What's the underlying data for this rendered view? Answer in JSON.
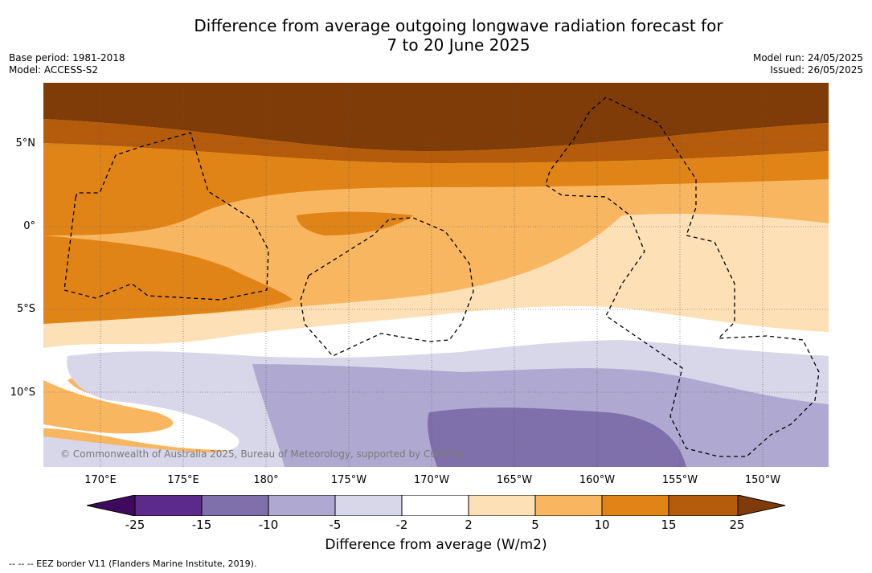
{
  "title": {
    "line1": "Difference from average outgoing longwave radiation forecast for",
    "line2": "7 to 20 June 2025"
  },
  "meta": {
    "base_period": "Base period: 1981-2018",
    "model": "Model: ACCESS-S2",
    "model_run": "Model run: 24/05/2025",
    "issued": "Issued: 26/05/2025"
  },
  "map": {
    "lat_labels": [
      "5°N",
      "0°",
      "5°S",
      "10°S"
    ],
    "lon_labels": [
      "170°E",
      "175°E",
      "180°",
      "175°W",
      "170°W",
      "165°W",
      "160°W",
      "155°W",
      "150°W"
    ],
    "copyright": "© Commonwealth of Australia 2025, Bureau of Meteorology, supported by COSPPac"
  },
  "colorbar": {
    "ticks": [
      "-25",
      "-15",
      "-10",
      "-5",
      "-2",
      "2",
      "5",
      "10",
      "15",
      "25"
    ],
    "label": "Difference from average (W/m2)",
    "colors": [
      "#3f0a5e",
      "#5b2a8a",
      "#7f6fab",
      "#afa9d1",
      "#d8d7ea",
      "#ffffff",
      "#fde0b5",
      "#f9b660",
      "#e08418",
      "#b45c0c",
      "#7f3c08"
    ]
  },
  "legend": {
    "eez": "-- -- -- EEZ border V11 (Flanders Marine Institute, 2019)."
  }
}
